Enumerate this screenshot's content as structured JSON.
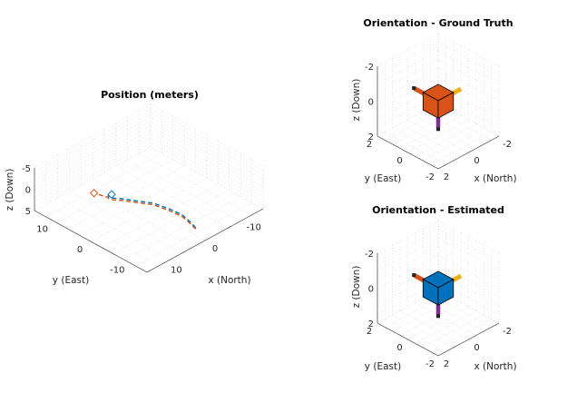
{
  "chart_data": [
    {
      "type": "line",
      "title": "Position (meters)",
      "xlabel": "x (North)",
      "ylabel": "y (East)",
      "zlabel": "z (Down)",
      "xticks": [
        "-10",
        "0",
        "10"
      ],
      "yticks": [
        "10",
        "0",
        "-10"
      ],
      "zticks": [
        "-5",
        "0",
        "5"
      ],
      "xlim": [
        -15,
        15
      ],
      "ylim": [
        -15,
        15
      ],
      "zlim": [
        -5,
        5
      ],
      "grid": true,
      "series": [
        {
          "style": "dashed",
          "color": "#0072BD",
          "points": [
            {
              "x": -1.0,
              "y": -11.5,
              "z": 4.2
            },
            {
              "x": -0.4,
              "y": -10.5,
              "z": 2.9
            },
            {
              "x": 0.3,
              "y": -9.2,
              "z": 1.6
            },
            {
              "x": 1.6,
              "y": -7.1,
              "z": 0.6
            },
            {
              "x": 3.2,
              "y": -4.5,
              "z": -0.3
            },
            {
              "x": 4.8,
              "y": -1.5,
              "z": -0.2
            },
            {
              "x": 5.6,
              "y": 1.3,
              "z": 0.3
            },
            {
              "x": 5.7,
              "y": 3.6,
              "z": 1.2
            },
            {
              "x": 5.0,
              "y": 5.6,
              "z": 2.2
            },
            {
              "x": 3.9,
              "y": 6.8,
              "z": 3.1
            },
            {
              "x": 2.6,
              "y": 7.2,
              "z": 3.6
            }
          ]
        },
        {
          "style": "dashed",
          "color": "#D95319",
          "points": [
            {
              "x": -1.0,
              "y": -11.5,
              "z": 4.5
            },
            {
              "x": -0.4,
              "y": -10.5,
              "z": 3.3
            },
            {
              "x": 0.3,
              "y": -9.2,
              "z": 2.0
            },
            {
              "x": 1.6,
              "y": -7.1,
              "z": 1.0
            },
            {
              "x": 3.2,
              "y": -4.5,
              "z": 0.1
            },
            {
              "x": 4.8,
              "y": -1.5,
              "z": 0.2
            },
            {
              "x": 5.6,
              "y": 1.3,
              "z": 0.7
            },
            {
              "x": 5.7,
              "y": 3.6,
              "z": 1.6
            },
            {
              "x": 5.0,
              "y": 5.6,
              "z": 2.6
            },
            {
              "x": 3.9,
              "y": 6.8,
              "z": 3.5
            },
            {
              "x": 3.6,
              "y": 10.9,
              "z": 4.6
            }
          ]
        }
      ],
      "markers": [
        {
          "shape": "diamond",
          "color": "#D95319",
          "x": 3.6,
          "y": 10.9,
          "z": 4.6
        },
        {
          "shape": "diamond",
          "color": "#0072BD",
          "x": 2.6,
          "y": 7.2,
          "z": 3.6
        }
      ]
    },
    {
      "type": "other",
      "title": "Orientation - Ground Truth",
      "xlabel": "x (North)",
      "ylabel": "y (East)",
      "zlabel": "z (Down)",
      "xticks": [
        "-2",
        "0",
        "2"
      ],
      "yticks": [
        "2",
        "0",
        "-2"
      ],
      "zticks": [
        "-2",
        "0",
        "2"
      ],
      "xlim": [
        -2,
        2
      ],
      "ylim": [
        -2,
        2
      ],
      "zlim": [
        -2,
        2
      ],
      "grid": true,
      "body_color": "#D95319",
      "axis_colors": {
        "north": "#EDB120",
        "east": "#D95319",
        "down": "#7E2F8E"
      }
    },
    {
      "type": "other",
      "title": "Orientation - Estimated",
      "xlabel": "x (North)",
      "ylabel": "y (East)",
      "zlabel": "z (Down)",
      "xticks": [
        "-2",
        "0",
        "2"
      ],
      "yticks": [
        "2",
        "0",
        "-2"
      ],
      "zticks": [
        "-2",
        "0",
        "2"
      ],
      "xlim": [
        -2,
        2
      ],
      "ylim": [
        -2,
        2
      ],
      "zlim": [
        -2,
        2
      ],
      "grid": true,
      "body_color": "#0072BD",
      "axis_colors": {
        "north": "#EDB120",
        "east": "#D95319",
        "down": "#7E2F8E"
      }
    }
  ]
}
